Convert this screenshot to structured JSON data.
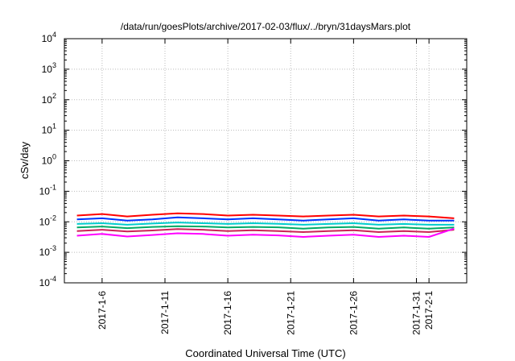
{
  "chart_data": {
    "type": "line",
    "title": "/data/run/goesPlots/archive/2017-02-03/flux/../bryn/31daysMars.plot",
    "xlabel": "Coordinated Universal Time (UTC)",
    "ylabel": "cSv/day",
    "y_scale": "log",
    "ylim": [
      0.0001,
      10000
    ],
    "y_ticks": [
      {
        "base": "10",
        "exp": "-4",
        "value": 0.0001
      },
      {
        "base": "10",
        "exp": "-3",
        "value": 0.001
      },
      {
        "base": "10",
        "exp": "-2",
        "value": 0.01
      },
      {
        "base": "10",
        "exp": "-1",
        "value": 0.1
      },
      {
        "base": "10",
        "exp": "0",
        "value": 1
      },
      {
        "base": "10",
        "exp": "1",
        "value": 10
      },
      {
        "base": "10",
        "exp": "2",
        "value": 100
      },
      {
        "base": "10",
        "exp": "3",
        "value": 1000
      },
      {
        "base": "10",
        "exp": "4",
        "value": 10000
      }
    ],
    "xlim": [
      "2017-01-03",
      "2017-02-04"
    ],
    "x_ticks": [
      "2017-1-6",
      "2017-1-11",
      "2017-1-16",
      "2017-1-21",
      "2017-1-26",
      "2017-1-31",
      "2017-2-1"
    ],
    "grid": true,
    "series": [
      {
        "color": "#ff0000",
        "x": [
          "2017-01-04",
          "2017-01-06",
          "2017-01-08",
          "2017-01-10",
          "2017-01-12",
          "2017-01-14",
          "2017-01-16",
          "2017-01-18",
          "2017-01-20",
          "2017-01-22",
          "2017-01-24",
          "2017-01-26",
          "2017-01-28",
          "2017-01-30",
          "2017-02-01",
          "2017-02-03"
        ],
        "values": [
          0.016,
          0.018,
          0.015,
          0.017,
          0.019,
          0.018,
          0.016,
          0.017,
          0.016,
          0.015,
          0.016,
          0.017,
          0.015,
          0.016,
          0.015,
          0.013
        ]
      },
      {
        "color": "#0033ff",
        "x": [
          "2017-01-04",
          "2017-01-06",
          "2017-01-08",
          "2017-01-10",
          "2017-01-12",
          "2017-01-14",
          "2017-01-16",
          "2017-01-18",
          "2017-01-20",
          "2017-01-22",
          "2017-01-24",
          "2017-01-26",
          "2017-01-28",
          "2017-01-30",
          "2017-02-01",
          "2017-02-03"
        ],
        "values": [
          0.012,
          0.013,
          0.011,
          0.012,
          0.014,
          0.013,
          0.012,
          0.013,
          0.012,
          0.011,
          0.012,
          0.013,
          0.011,
          0.012,
          0.011,
          0.011
        ]
      },
      {
        "color": "#00cccc",
        "x": [
          "2017-01-04",
          "2017-01-06",
          "2017-01-08",
          "2017-01-10",
          "2017-01-12",
          "2017-01-14",
          "2017-01-16",
          "2017-01-18",
          "2017-01-20",
          "2017-01-22",
          "2017-01-24",
          "2017-01-26",
          "2017-01-28",
          "2017-01-30",
          "2017-02-01",
          "2017-02-03"
        ],
        "values": [
          0.0085,
          0.009,
          0.008,
          0.0088,
          0.0095,
          0.009,
          0.0085,
          0.009,
          0.0086,
          0.008,
          0.0085,
          0.009,
          0.008,
          0.0085,
          0.008,
          0.008
        ]
      },
      {
        "color": "#00aa66",
        "x": [
          "2017-01-04",
          "2017-01-06",
          "2017-01-08",
          "2017-01-10",
          "2017-01-12",
          "2017-01-14",
          "2017-01-16",
          "2017-01-18",
          "2017-01-20",
          "2017-01-22",
          "2017-01-24",
          "2017-01-26",
          "2017-01-28",
          "2017-01-30",
          "2017-02-01",
          "2017-02-03"
        ],
        "values": [
          0.0065,
          0.007,
          0.0062,
          0.0068,
          0.0072,
          0.007,
          0.0065,
          0.0068,
          0.0066,
          0.006,
          0.0065,
          0.0068,
          0.006,
          0.0065,
          0.006,
          0.0065
        ]
      },
      {
        "color": "#cc2255",
        "x": [
          "2017-01-04",
          "2017-01-06",
          "2017-01-08",
          "2017-01-10",
          "2017-01-12",
          "2017-01-14",
          "2017-01-16",
          "2017-01-18",
          "2017-01-20",
          "2017-01-22",
          "2017-01-24",
          "2017-01-26",
          "2017-01-28",
          "2017-01-30",
          "2017-02-01",
          "2017-02-03"
        ],
        "values": [
          0.005,
          0.0055,
          0.0048,
          0.0052,
          0.0058,
          0.0055,
          0.005,
          0.0053,
          0.005,
          0.0046,
          0.005,
          0.0053,
          0.0046,
          0.005,
          0.0046,
          0.0055
        ]
      },
      {
        "color": "#ff00ff",
        "x": [
          "2017-01-04",
          "2017-01-06",
          "2017-01-08",
          "2017-01-10",
          "2017-01-12",
          "2017-01-14",
          "2017-01-16",
          "2017-01-18",
          "2017-01-20",
          "2017-01-22",
          "2017-01-24",
          "2017-01-26",
          "2017-01-28",
          "2017-01-30",
          "2017-02-01",
          "2017-02-03"
        ],
        "values": [
          0.0035,
          0.004,
          0.0033,
          0.0037,
          0.0042,
          0.004,
          0.0035,
          0.0038,
          0.0036,
          0.0032,
          0.0035,
          0.0038,
          0.0032,
          0.0035,
          0.0032,
          0.006
        ]
      }
    ]
  }
}
